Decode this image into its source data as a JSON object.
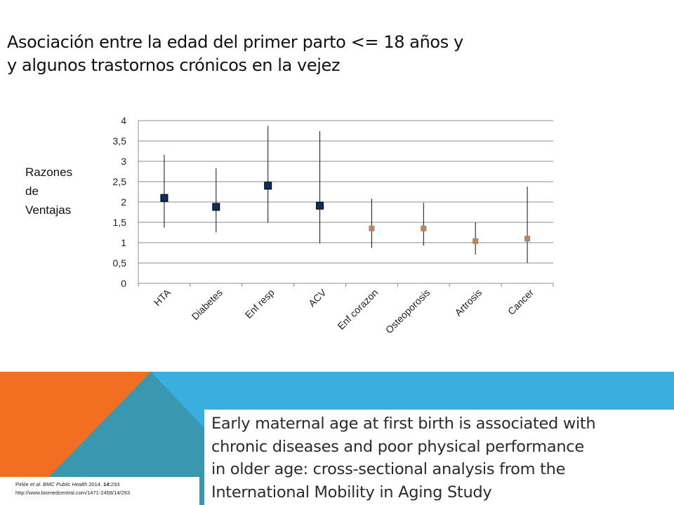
{
  "title": {
    "line1": "Asociación entre la edad del primer  parto <= 18 años y",
    "line2": "y algunos trastornos crónicos en la vejez"
  },
  "ylabel_lines": [
    "Razones",
    "de",
    "Ventajas"
  ],
  "chart_data": {
    "type": "scatter",
    "subtype": "point-with-error-bars",
    "categories": [
      "HTA",
      "Diabetes",
      "Enf resp",
      "ACV",
      "Enf corazon",
      "Osteoporosis",
      "Artrosis",
      "Cancer"
    ],
    "values": [
      2.1,
      1.88,
      2.4,
      1.91,
      1.35,
      1.35,
      1.04,
      1.1
    ],
    "lower": [
      1.37,
      1.25,
      1.49,
      0.98,
      0.87,
      0.93,
      0.71,
      0.5
    ],
    "upper": [
      3.16,
      2.83,
      3.87,
      3.74,
      2.08,
      1.98,
      1.5,
      2.38
    ],
    "marker_colors": [
      "#0d2f5f",
      "#0d2f5f",
      "#0d2f5f",
      "#0d2f5f",
      "#e07b39",
      "#e07b39",
      "#e07b39",
      "#e07b39"
    ],
    "ylim": [
      0,
      4
    ],
    "yticks": [
      "0",
      "0,5",
      "1",
      "1,5",
      "2",
      "2,5",
      "3",
      "3,5",
      "4"
    ],
    "grid": true,
    "legend": "none"
  },
  "reference": {
    "line1_author": "Pirkle ",
    "line1_etal": "et al. BMC Public Health",
    "line1_year": " 2014, ",
    "line1_vol": "14:",
    "line1_page": "293",
    "line2": "http://www.biomedcentral.com/1471-2458/14/293"
  },
  "paper_title_lines": [
    "Early maternal age at first birth is associated with",
    "chronic diseases and poor physical performance",
    "in older age: cross-sectional analysis from the",
    "International Mobility in Aging Study"
  ],
  "colors": {
    "orange": "#f26f21",
    "blue": "#3baee0",
    "teal": "#3a97b0",
    "axis": "#8c8c8c"
  }
}
